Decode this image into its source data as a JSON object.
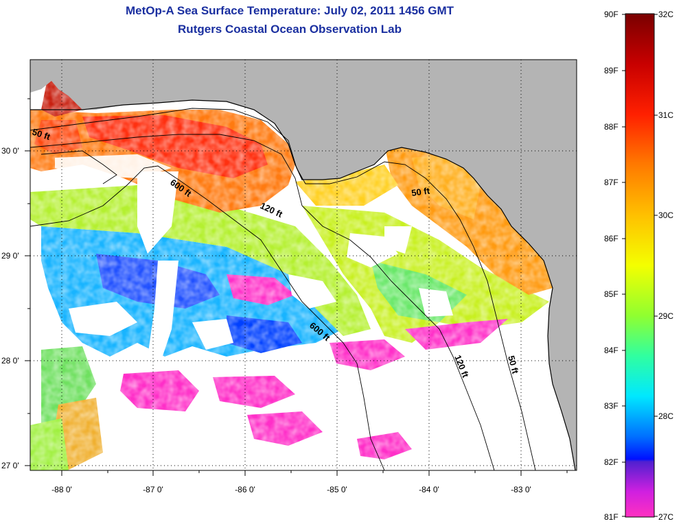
{
  "title_line1": "MetOp-A Sea Surface Temperature:  July 02, 2011 1456 GMT",
  "title_line2": "Rutgers Coastal Ocean Observation Lab",
  "x_ticks": [
    "-88 0'",
    "-87 0'",
    "-86 0'",
    "-85 0'",
    "-84 0'",
    "-83 0'"
  ],
  "y_ticks": [
    "30 0'",
    "29 0'",
    "28 0'",
    "27 0'"
  ],
  "contours": [
    "50 ft",
    "600 ft",
    "120 ft",
    "50 ft",
    "600 ft",
    "120 ft",
    "50 ft"
  ],
  "colorbar": {
    "fahrenheit": [
      "90F",
      "89F",
      "88F",
      "87F",
      "86F",
      "85F",
      "84F",
      "83F",
      "82F",
      "81F"
    ],
    "celsius": [
      "32C",
      "31C",
      "30C",
      "29C",
      "28C",
      "27C"
    ]
  },
  "colors": {
    "land": "#b4b4b4",
    "cloud": "#ffffff",
    "title": "#1a2fa0"
  }
}
